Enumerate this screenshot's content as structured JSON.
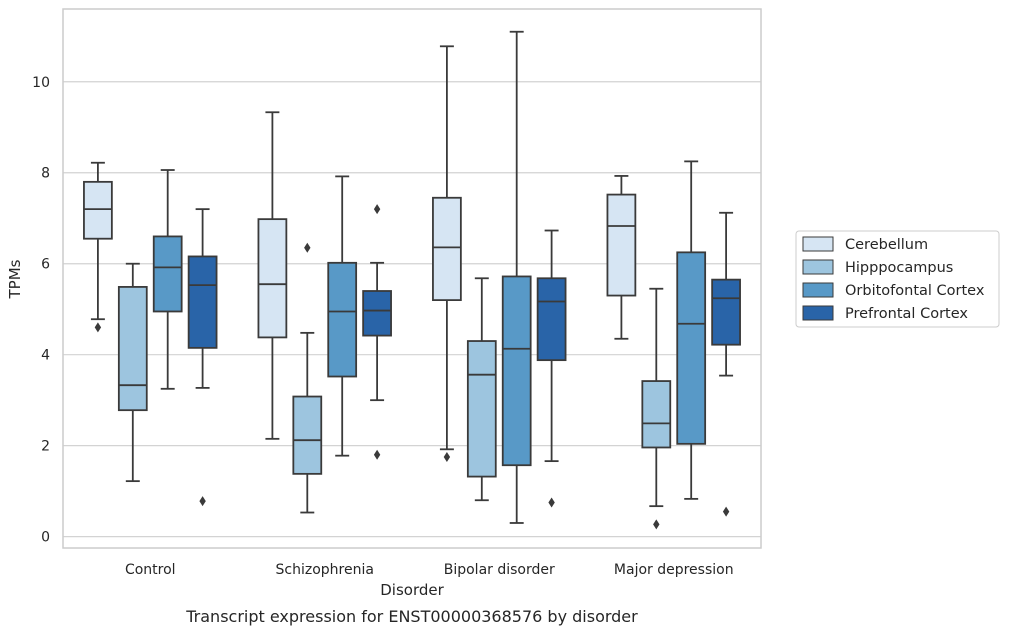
{
  "chart_data": {
    "type": "boxplot",
    "caption": "Transcript expression for ENST00000368576 by disorder",
    "xlabel": "Disorder",
    "ylabel": "TPMs",
    "ylim": [
      -0.25,
      11.6
    ],
    "yticks": [
      0,
      2,
      4,
      6,
      8,
      10
    ],
    "grid": true,
    "legend_position": "right",
    "categories": [
      "Control",
      "Schizophrenia",
      "Bipolar disorder",
      "Major depression"
    ],
    "series": [
      {
        "name": "Cerebellum",
        "color": "#d6e5f3",
        "boxes": [
          {
            "whislo": 4.78,
            "q1": 6.55,
            "med": 7.2,
            "q3": 7.8,
            "whishi": 8.22,
            "fliers": [
              4.6
            ]
          },
          {
            "whislo": 2.15,
            "q1": 4.38,
            "med": 5.55,
            "q3": 6.98,
            "whishi": 9.33,
            "fliers": []
          },
          {
            "whislo": 1.92,
            "q1": 5.2,
            "med": 6.36,
            "q3": 7.45,
            "whishi": 10.78,
            "fliers": [
              1.75
            ]
          },
          {
            "whislo": 4.35,
            "q1": 5.3,
            "med": 6.83,
            "q3": 7.52,
            "whishi": 7.93,
            "fliers": []
          }
        ]
      },
      {
        "name": "Hipppocampus",
        "color": "#9dc5df",
        "boxes": [
          {
            "whislo": 1.22,
            "q1": 2.78,
            "med": 3.33,
            "q3": 5.49,
            "whishi": 6.0,
            "fliers": []
          },
          {
            "whislo": 0.53,
            "q1": 1.38,
            "med": 2.12,
            "q3": 3.08,
            "whishi": 4.48,
            "fliers": [
              6.35
            ]
          },
          {
            "whislo": 0.8,
            "q1": 1.32,
            "med": 3.56,
            "q3": 4.3,
            "whishi": 5.68,
            "fliers": []
          },
          {
            "whislo": 0.67,
            "q1": 1.96,
            "med": 2.49,
            "q3": 3.42,
            "whishi": 5.45,
            "fliers": [
              0.27
            ]
          }
        ]
      },
      {
        "name": "Orbitofontal Cortex",
        "color": "#5899c7",
        "boxes": [
          {
            "whislo": 3.25,
            "q1": 4.95,
            "med": 5.92,
            "q3": 6.6,
            "whishi": 8.06,
            "fliers": []
          },
          {
            "whislo": 1.78,
            "q1": 3.52,
            "med": 4.95,
            "q3": 6.02,
            "whishi": 7.92,
            "fliers": []
          },
          {
            "whislo": 0.3,
            "q1": 1.57,
            "med": 4.13,
            "q3": 5.72,
            "whishi": 11.1,
            "fliers": []
          },
          {
            "whislo": 0.83,
            "q1": 2.04,
            "med": 4.68,
            "q3": 6.25,
            "whishi": 8.25,
            "fliers": []
          }
        ]
      },
      {
        "name": "Prefrontal Cortex",
        "color": "#2964a8",
        "boxes": [
          {
            "whislo": 3.27,
            "q1": 4.15,
            "med": 5.53,
            "q3": 6.16,
            "whishi": 7.2,
            "fliers": [
              0.78
            ]
          },
          {
            "whislo": 3.0,
            "q1": 4.42,
            "med": 4.97,
            "q3": 5.4,
            "whishi": 6.02,
            "fliers": [
              7.2,
              1.8
            ]
          },
          {
            "whislo": 1.66,
            "q1": 3.88,
            "med": 5.17,
            "q3": 5.68,
            "whishi": 6.73,
            "fliers": [
              0.75
            ]
          },
          {
            "whislo": 3.54,
            "q1": 4.22,
            "med": 5.24,
            "q3": 5.65,
            "whishi": 7.12,
            "fliers": [
              0.55
            ]
          }
        ]
      }
    ]
  }
}
